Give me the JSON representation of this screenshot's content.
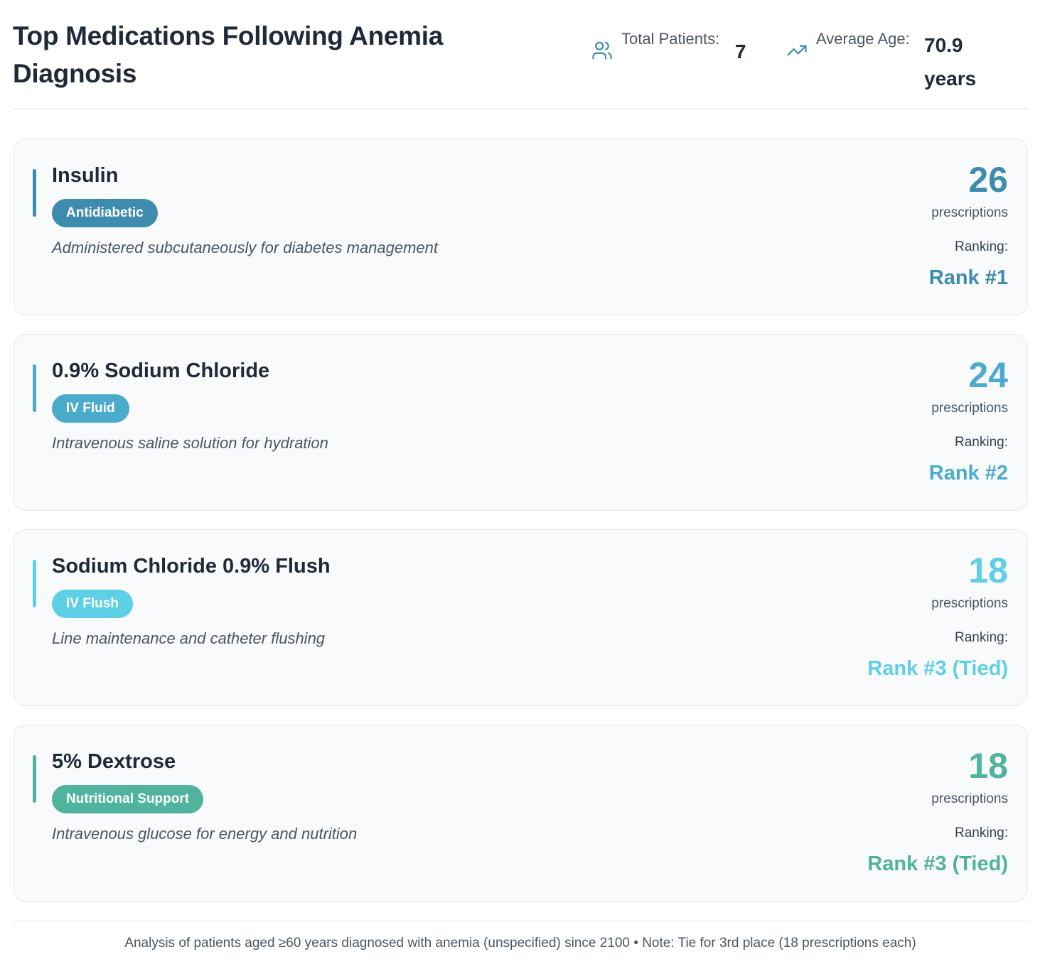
{
  "header": {
    "title": "Top Medications Following Anemia Diagnosis",
    "stats": {
      "patients": {
        "label": "Total Patients:",
        "value": "7",
        "icon": "users-icon"
      },
      "age": {
        "label": "Average Age:",
        "value": "70.9 years",
        "icon": "trending-up-icon"
      }
    }
  },
  "colors": {
    "rank1": "#3e8cad",
    "rank2": "#4aabcd",
    "rank3a": "#5fcfe6",
    "rank3b": "#50b39e",
    "icon": "#3e8cad"
  },
  "medications": [
    {
      "name": "Insulin",
      "category": "Antidiabetic",
      "description": "Administered subcutaneously for diabetes management",
      "count": "26",
      "count_label": "prescriptions",
      "ranking_label": "Ranking:",
      "rank": "Rank #1",
      "color": "#3e8cad"
    },
    {
      "name": "0.9% Sodium Chloride",
      "category": "IV Fluid",
      "description": "Intravenous saline solution for hydration",
      "count": "24",
      "count_label": "prescriptions",
      "ranking_label": "Ranking:",
      "rank": "Rank #2",
      "color": "#4aabcd"
    },
    {
      "name": "Sodium Chloride 0.9% Flush",
      "category": "IV Flush",
      "description": "Line maintenance and catheter flushing",
      "count": "18",
      "count_label": "prescriptions",
      "ranking_label": "Ranking:",
      "rank": "Rank #3 (Tied)",
      "color": "#5fcfe6"
    },
    {
      "name": "5% Dextrose",
      "category": "Nutritional Support",
      "description": "Intravenous glucose for energy and nutrition",
      "count": "18",
      "count_label": "prescriptions",
      "ranking_label": "Ranking:",
      "rank": "Rank #3 (Tied)",
      "color": "#50b39e"
    }
  ],
  "footer": {
    "text": "Analysis of patients aged ≥60 years diagnosed with anemia (unspecified) since 2100 • Note: Tie for 3rd place (18 prescriptions each)"
  }
}
